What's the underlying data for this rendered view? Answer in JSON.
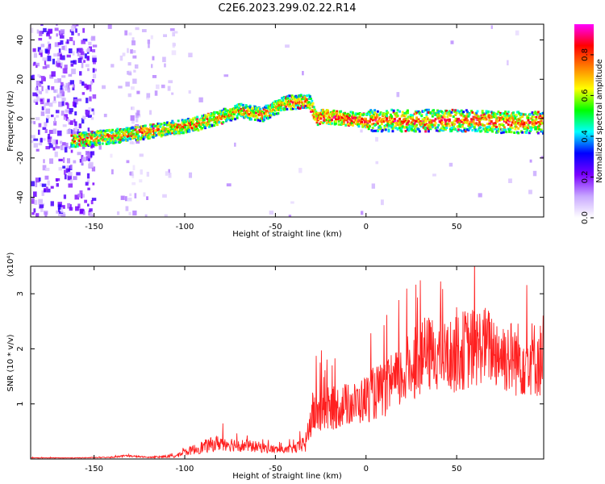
{
  "figure_title": "C2E6.2023.299.02.22.R14",
  "chart_data": [
    {
      "type": "heatmap",
      "title": "",
      "xlabel": "Height of straight line (km)",
      "ylabel": "Frequency (Hz)",
      "xlim": [
        -185,
        98
      ],
      "ylim": [
        -50,
        48
      ],
      "xticks": [
        -150,
        -100,
        -50,
        0,
        50
      ],
      "yticks": [
        -40,
        -20,
        0,
        20,
        40
      ],
      "xtick_labels": [
        "-150",
        "-100",
        "-50",
        "0",
        "50"
      ],
      "ytick_labels": [
        "-40",
        "-20",
        "0",
        "20",
        "40"
      ],
      "ridge_x": [
        -162,
        -150,
        -130,
        -110,
        -95,
        -80,
        -70,
        -58,
        -45,
        -32,
        -28,
        -25,
        -10,
        0,
        20,
        40,
        60,
        80,
        98
      ],
      "ridge_y": [
        -11,
        -10,
        -8,
        -5,
        -3,
        1,
        4,
        2,
        8,
        9,
        0,
        1,
        0,
        -1,
        -1,
        -1,
        -1,
        -2,
        -2
      ],
      "colorbar": {
        "label": "Normalized spectral amplitude",
        "range": [
          0.0,
          0.95
        ],
        "ticks": [
          0.0,
          0.2,
          0.4,
          0.6,
          0.8
        ],
        "tick_labels": [
          "0.0",
          "0.2",
          "0.4",
          "0.6",
          "0.8"
        ],
        "colors": [
          "#ffffff",
          "#c8a8ff",
          "#7b00ff",
          "#0000ff",
          "#00ffff",
          "#00ff00",
          "#ffff00",
          "#ff8000",
          "#ff0000",
          "#ff00ff"
        ]
      }
    },
    {
      "type": "line",
      "title": "",
      "xlabel": "Height of straight line (km)",
      "ylabel": "SNR (10 * v/v)",
      "y_scale_note": "(x10⁴)",
      "xlim": [
        -185,
        98
      ],
      "ylim": [
        0,
        3.5
      ],
      "xticks": [
        -150,
        -100,
        -50,
        0,
        50
      ],
      "yticks": [
        1,
        2,
        3
      ],
      "xtick_labels": [
        "-150",
        "-100",
        "-50",
        "0",
        "50"
      ],
      "ytick_labels": [
        "1",
        "2",
        "3"
      ],
      "line_color": "#ff2020",
      "series": [
        {
          "name": "SNR",
          "x": [
            -185,
            -160,
            -140,
            -133,
            -120,
            -105,
            -100,
            -90,
            -80,
            -70,
            -60,
            -52,
            -45,
            -38,
            -33,
            -30,
            -25,
            -20,
            -15,
            -10,
            -5,
            0,
            5,
            10,
            15,
            20,
            25,
            30,
            35,
            40,
            45,
            50,
            55,
            60,
            65,
            70,
            75,
            80,
            85,
            90,
            95,
            98
          ],
          "y": [
            0.02,
            0.02,
            0.03,
            0.06,
            0.03,
            0.05,
            0.12,
            0.22,
            0.3,
            0.25,
            0.22,
            0.18,
            0.16,
            0.2,
            0.3,
            0.8,
            0.9,
            0.9,
            0.95,
            1.0,
            1.0,
            1.1,
            1.2,
            1.25,
            1.35,
            1.5,
            1.7,
            1.8,
            1.9,
            1.9,
            1.85,
            1.9,
            2.0,
            2.0,
            2.1,
            2.0,
            1.9,
            1.85,
            1.8,
            1.85,
            1.8,
            1.8
          ],
          "amp": [
            0.005,
            0.006,
            0.01,
            0.02,
            0.01,
            0.03,
            0.06,
            0.12,
            0.15,
            0.12,
            0.1,
            0.08,
            0.06,
            0.1,
            0.2,
            0.4,
            0.45,
            0.4,
            0.4,
            0.4,
            0.4,
            0.45,
            0.5,
            0.5,
            0.55,
            0.6,
            0.65,
            0.65,
            0.7,
            0.65,
            0.65,
            0.7,
            0.75,
            0.75,
            0.7,
            0.7,
            0.7,
            0.7,
            0.7,
            0.7,
            0.7,
            0.7
          ]
        }
      ]
    }
  ]
}
